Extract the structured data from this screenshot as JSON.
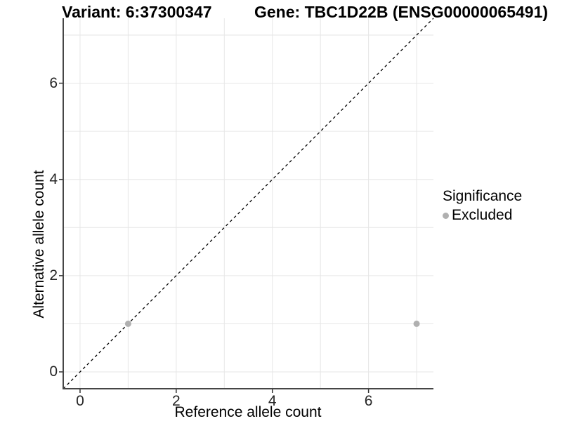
{
  "titles": {
    "left": "Variant: 6:37300347",
    "right": "Gene: TBC1D22B (ENSG00000065491)"
  },
  "chart_data": {
    "type": "scatter",
    "xlabel": "Reference allele count",
    "ylabel": "Alternative allele count",
    "xlim": [
      -0.35,
      7.35
    ],
    "ylim": [
      -0.35,
      7.35
    ],
    "x_ticks": [
      0,
      2,
      4,
      6
    ],
    "y_ticks": [
      0,
      2,
      4,
      6
    ],
    "x_gridlines": [
      0,
      1,
      2,
      3,
      4,
      5,
      6,
      7
    ],
    "y_gridlines": [
      0,
      1,
      2,
      3,
      4,
      5,
      6,
      7
    ],
    "grid": true,
    "points": [
      {
        "x": 1,
        "y": 1,
        "significance": "Excluded"
      },
      {
        "x": 7,
        "y": 1,
        "significance": "Excluded"
      }
    ],
    "identity_line": {
      "style": "dashed",
      "slope": 1,
      "intercept": 0
    },
    "legend": {
      "title": "Significance",
      "position": "right",
      "items": [
        {
          "label": "Excluded",
          "color": "#b0b0b0"
        }
      ]
    },
    "colors": {
      "point_excluded": "#b0b0b0",
      "grid": "#e6e6e6",
      "axis_line": "#464646",
      "tick": "#333333",
      "diagonal": "#000000",
      "background": "#ffffff"
    }
  }
}
